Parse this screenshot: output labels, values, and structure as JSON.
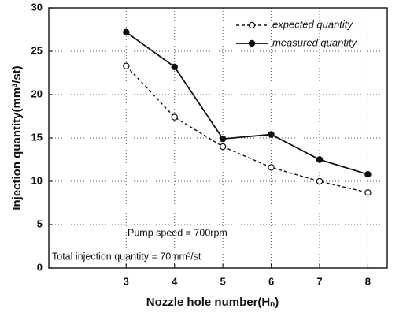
{
  "chart_data": {
    "type": "line",
    "x_label": "Nozzle hole number(Hₙ)",
    "y_label": "Injection quantity(mm³/st)",
    "x": [
      3,
      4,
      5,
      6,
      7,
      8
    ],
    "series": [
      {
        "name": "expected quantity",
        "color": "#111111",
        "style": "dashed",
        "marker": "open-circle",
        "values": [
          23.3,
          17.4,
          14.0,
          11.6,
          10.0,
          8.7
        ]
      },
      {
        "name": "measured quantity",
        "color": "#111111",
        "style": "solid",
        "marker": "filled-circle",
        "values": [
          27.2,
          23.2,
          14.9,
          15.4,
          12.5,
          10.8
        ]
      }
    ],
    "xlim": [
      1.4,
      8.4
    ],
    "xticks": [
      3,
      4,
      5,
      6,
      7,
      8
    ],
    "ylim": [
      0,
      30
    ],
    "yticks": [
      0,
      5,
      10,
      15,
      20,
      25,
      30
    ],
    "grid": true,
    "legend": "upper right",
    "annotations": [
      "Pump speed = 700rpm",
      "Total injection quantity = 70mm³/st"
    ]
  }
}
